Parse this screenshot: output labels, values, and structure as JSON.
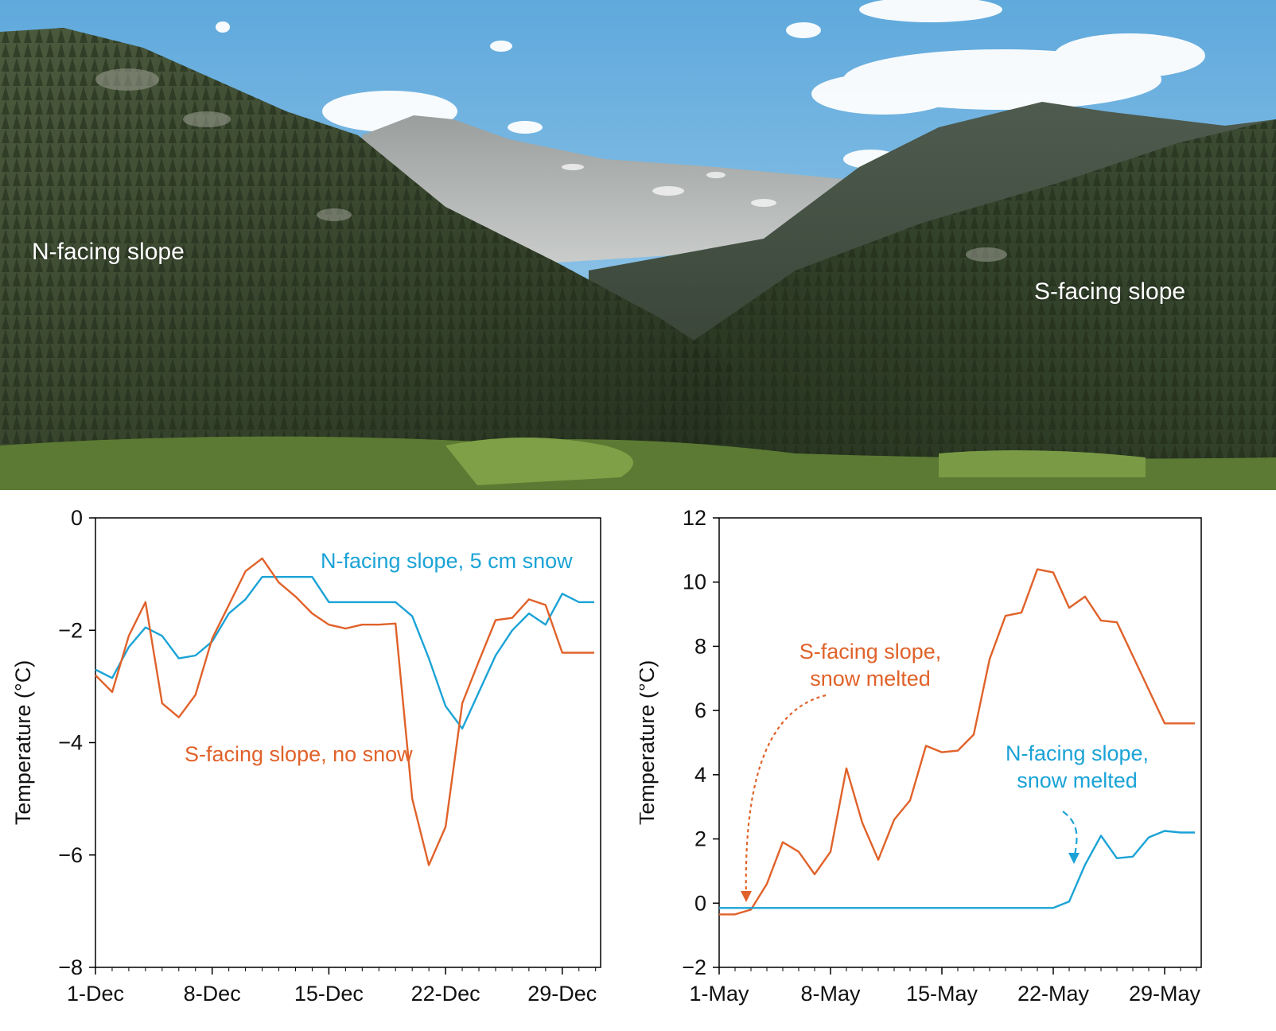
{
  "photo": {
    "labels": {
      "north": "N-facing slope",
      "south": "S-facing slope"
    }
  },
  "colors": {
    "south": "#e0622a",
    "north": "#1ba3d6"
  },
  "chart_data": [
    {
      "type": "line",
      "title": "",
      "xlabel": "",
      "ylabel": "Temperature (°C)",
      "ylim": [
        -8,
        0
      ],
      "yticks": [
        0,
        -2,
        -4,
        -6,
        -8
      ],
      "ytick_labels": [
        "0",
        "−2",
        "−4",
        "−6",
        "−8"
      ],
      "xlim": [
        1,
        31.3
      ],
      "xticks": [
        1,
        8,
        15,
        22,
        29
      ],
      "xtick_labels": [
        "1-Dec",
        "8-Dec",
        "15-Dec",
        "22-Dec",
        "29-Dec"
      ],
      "grid": false,
      "series": [
        {
          "name": "N-facing slope, 5 cm snow",
          "color": "#1ba3d6",
          "x": [
            1,
            2,
            3,
            4,
            5,
            6,
            7,
            8,
            9,
            10,
            11,
            12,
            13,
            14,
            15,
            16,
            17,
            18,
            19,
            20,
            21,
            22,
            23,
            24,
            25,
            26,
            27,
            28,
            29,
            30,
            31
          ],
          "y": [
            -2.7,
            -2.85,
            -2.3,
            -1.95,
            -2.1,
            -2.5,
            -2.45,
            -2.2,
            -1.7,
            -1.45,
            -1.05,
            -1.05,
            -1.05,
            -1.05,
            -1.5,
            -1.5,
            -1.5,
            -1.5,
            -1.5,
            -1.75,
            -2.5,
            -3.35,
            -3.75,
            -3.1,
            -2.45,
            -2.0,
            -1.7,
            -1.9,
            -1.35,
            -1.5,
            -1.5
          ]
        },
        {
          "name": "S-facing slope, no snow",
          "color": "#e0622a",
          "x": [
            1,
            2,
            3,
            4,
            5,
            6,
            7,
            8,
            9,
            10,
            11,
            12,
            13,
            14,
            15,
            16,
            17,
            18,
            19,
            20,
            21,
            22,
            23,
            24,
            25,
            26,
            27,
            28,
            29,
            30,
            31
          ],
          "y": [
            -2.8,
            -3.1,
            -2.1,
            -1.5,
            -3.3,
            -3.55,
            -3.15,
            -2.15,
            -1.55,
            -0.95,
            -0.72,
            -1.15,
            -1.4,
            -1.7,
            -1.9,
            -1.97,
            -1.9,
            -1.9,
            -1.88,
            -5.0,
            -6.18,
            -5.5,
            -3.3,
            -2.55,
            -1.82,
            -1.78,
            -1.45,
            -1.55,
            -2.4,
            -2.4,
            -2.4
          ]
        }
      ],
      "annotations": [
        {
          "series": "N-facing slope, 5 cm snow",
          "text": "N-facing slope, 5 cm snow"
        },
        {
          "series": "S-facing slope, no snow",
          "text": "S-facing slope, no snow"
        }
      ]
    },
    {
      "type": "line",
      "title": "",
      "xlabel": "",
      "ylabel": "Temperature (°C)",
      "ylim": [
        -2,
        12
      ],
      "yticks": [
        12,
        10,
        8,
        6,
        4,
        2,
        0,
        -2
      ],
      "ytick_labels": [
        "12",
        "10",
        "8",
        "6",
        "4",
        "2",
        "0",
        "−2"
      ],
      "xlim": [
        1,
        31.3
      ],
      "xticks": [
        1,
        8,
        15,
        22,
        29
      ],
      "xtick_labels": [
        "1-May",
        "8-May",
        "15-May",
        "22-May",
        "29-May"
      ],
      "grid": false,
      "series": [
        {
          "name": "S-facing slope, snow melted",
          "color": "#e0622a",
          "x": [
            1,
            2,
            3,
            4,
            5,
            6,
            7,
            8,
            9,
            10,
            11,
            12,
            13,
            14,
            15,
            16,
            17,
            18,
            19,
            20,
            21,
            22,
            23,
            24,
            25,
            26,
            27,
            28,
            29,
            30,
            31
          ],
          "y": [
            -0.35,
            -0.35,
            -0.2,
            0.6,
            1.9,
            1.6,
            0.9,
            1.6,
            4.2,
            2.5,
            1.35,
            2.6,
            3.2,
            4.9,
            4.7,
            4.75,
            5.25,
            7.6,
            8.95,
            9.05,
            10.4,
            10.3,
            9.2,
            9.55,
            8.8,
            8.75,
            7.7,
            6.65,
            5.6,
            5.6,
            5.6
          ]
        },
        {
          "name": "N-facing slope, snow melted",
          "color": "#1ba3d6",
          "x": [
            1,
            2,
            3,
            4,
            5,
            6,
            7,
            8,
            9,
            10,
            11,
            12,
            13,
            14,
            15,
            16,
            17,
            18,
            19,
            20,
            21,
            22,
            23,
            24,
            25,
            26,
            27,
            28,
            29,
            30,
            31
          ],
          "y": [
            -0.15,
            -0.15,
            -0.15,
            -0.15,
            -0.15,
            -0.15,
            -0.15,
            -0.15,
            -0.15,
            -0.15,
            -0.15,
            -0.15,
            -0.15,
            -0.15,
            -0.15,
            -0.15,
            -0.15,
            -0.15,
            -0.15,
            -0.15,
            -0.15,
            -0.15,
            0.05,
            1.2,
            2.1,
            1.4,
            1.45,
            2.05,
            2.25,
            2.2,
            2.2
          ]
        }
      ],
      "annotations": [
        {
          "series": "S-facing slope, snow melted",
          "lines": [
            "S-facing slope,",
            "snow melted"
          ]
        },
        {
          "series": "N-facing slope, snow melted",
          "lines": [
            "N-facing slope,",
            "snow melted"
          ]
        }
      ]
    }
  ]
}
